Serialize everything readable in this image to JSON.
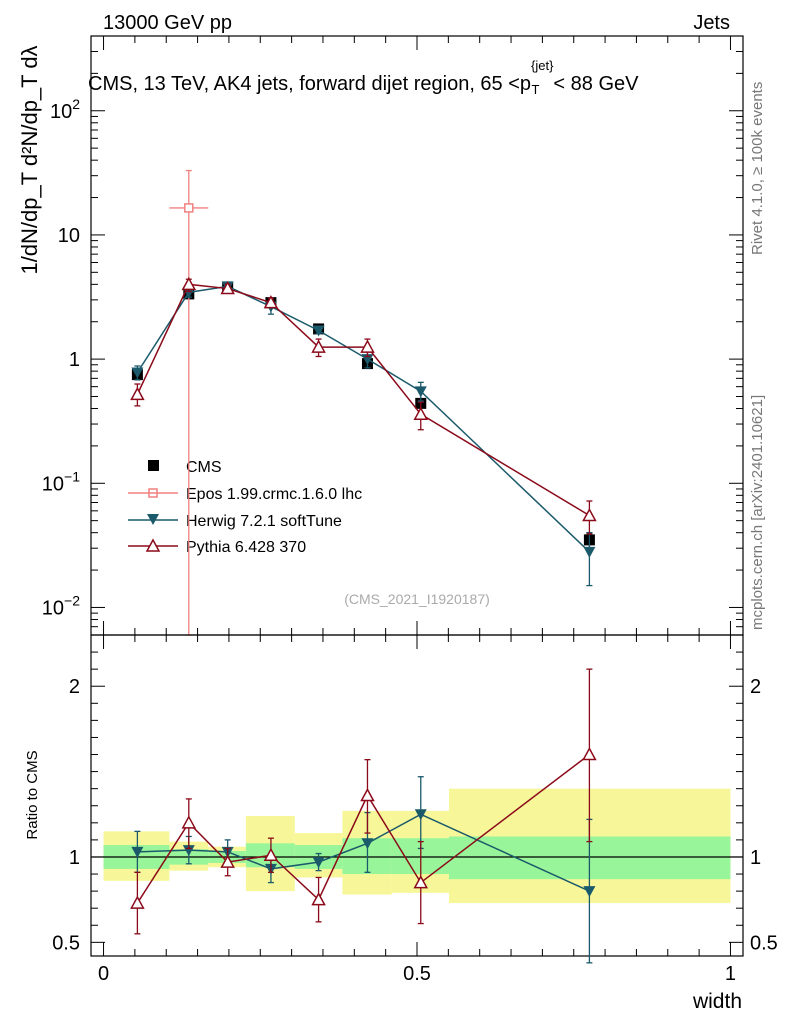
{
  "header": {
    "left": "13000 GeV pp",
    "right": "Jets"
  },
  "title": {
    "main": "CMS, 13 TeV, AK4 jets, forward dijet region, 65 <p",
    "sup": "{jet}",
    "sub": "T",
    "end": "< 88 GeV"
  },
  "side_labels": {
    "rivet": "Rivet 4.1.0, ≥ 100k events",
    "mcplots": "mcplots.cern.ch [arXiv:2401.10621]"
  },
  "analysis_id": "(CMS_2021_I1920187)",
  "colors": {
    "cms": "#000000",
    "epos": "#f08080",
    "herwig": "#1b5a6b",
    "pythia": "#8b0a1a",
    "band_inner": "#99f599",
    "band_outer": "#f7f799"
  },
  "chart_data": [
    {
      "type": "line",
      "scale": "log",
      "title": "CMS, 13 TeV, AK4 jets, forward dijet region, 65 <p_T^{jet}< 88 GeV",
      "ylabel": "1/dN/dp_T d²N/dp_T dλ",
      "ylim": [
        0.006,
        400
      ],
      "y_ticks": [
        {
          "value": 0.01,
          "base": "10",
          "exp": "−2"
        },
        {
          "value": 0.1,
          "base": "10",
          "exp": "−1"
        },
        {
          "value": 1,
          "base": "1",
          "exp": ""
        },
        {
          "value": 10,
          "base": "10",
          "exp": ""
        },
        {
          "value": 100,
          "base": "10",
          "exp": "2"
        }
      ],
      "x_bins": [
        [
          0.0,
          0.105
        ],
        [
          0.105,
          0.167
        ],
        [
          0.167,
          0.227
        ],
        [
          0.227,
          0.305
        ],
        [
          0.305,
          0.381
        ],
        [
          0.381,
          0.46
        ],
        [
          0.46,
          0.551
        ],
        [
          0.551,
          1.0
        ]
      ],
      "series": [
        {
          "key": "cms",
          "name": "CMS",
          "marker": "square",
          "x": [
            0.054,
            0.136,
            0.198,
            0.267,
            0.343,
            0.421,
            0.506,
            0.775
          ],
          "y": [
            0.75,
            3.35,
            3.8,
            2.85,
            1.75,
            0.92,
            0.44,
            0.035
          ],
          "yerr": [
            0.05,
            0.15,
            0.1,
            0.1,
            0.05,
            0.05,
            0.03,
            0.005
          ]
        },
        {
          "key": "epos",
          "name": "Epos 1.99.crmc.1.6.0 lhc",
          "marker": "open-cross",
          "x": [
            0.136
          ],
          "y": [
            16.5
          ],
          "ylo": [
            0.0001
          ],
          "yhi": [
            33
          ],
          "xerr": [
            0.031
          ]
        },
        {
          "key": "herwig",
          "name": "Herwig 7.2.1 softTune",
          "marker": "down-triangle",
          "x": [
            0.054,
            0.136,
            0.198,
            0.267,
            0.343,
            0.421,
            0.506,
            0.775
          ],
          "y": [
            0.78,
            3.45,
            3.85,
            2.65,
            1.7,
            1.0,
            0.55,
            0.028
          ],
          "ylo": [
            0.68,
            3.15,
            3.6,
            2.3,
            1.6,
            0.85,
            0.46,
            0.015
          ],
          "yhi": [
            0.88,
            3.7,
            4.1,
            2.95,
            1.8,
            1.15,
            0.65,
            0.04
          ]
        },
        {
          "key": "pythia",
          "name": "Pythia 6.428 370",
          "marker": "up-triangle",
          "x": [
            0.054,
            0.136,
            0.198,
            0.267,
            0.343,
            0.421,
            0.506,
            0.775
          ],
          "y": [
            0.52,
            4.0,
            3.7,
            2.85,
            1.25,
            1.25,
            0.36,
            0.055
          ],
          "ylo": [
            0.42,
            3.5,
            3.4,
            2.6,
            1.05,
            1.05,
            0.27,
            0.039
          ],
          "yhi": [
            0.63,
            4.4,
            4.0,
            3.1,
            1.45,
            1.45,
            0.45,
            0.072
          ]
        }
      ]
    },
    {
      "type": "line",
      "ylabel": "Ratio to CMS",
      "xlabel": "width",
      "xlim": [
        -0.02,
        1.02
      ],
      "ylim": [
        0.42,
        2.3
      ],
      "x_ticks": [
        {
          "value": 0,
          "label": "0"
        },
        {
          "value": 0.5,
          "label": "0.5"
        },
        {
          "value": 1,
          "label": "1"
        }
      ],
      "y_ticks": [
        {
          "value": 0.5,
          "label": "0.5"
        },
        {
          "value": 1,
          "label": "1"
        },
        {
          "value": 2,
          "label": "2"
        }
      ],
      "bands": [
        {
          "x0": 0.0,
          "x1": 0.105,
          "inner": [
            0.93,
            1.07
          ],
          "outer": [
            0.86,
            1.15
          ]
        },
        {
          "x0": 0.105,
          "x1": 0.167,
          "inner": [
            0.955,
            1.045
          ],
          "outer": [
            0.92,
            1.09
          ]
        },
        {
          "x0": 0.167,
          "x1": 0.227,
          "inner": [
            0.965,
            1.035
          ],
          "outer": [
            0.94,
            1.06
          ]
        },
        {
          "x0": 0.227,
          "x1": 0.305,
          "inner": [
            0.94,
            1.08
          ],
          "outer": [
            0.8,
            1.24
          ]
        },
        {
          "x0": 0.305,
          "x1": 0.381,
          "inner": [
            0.93,
            1.07
          ],
          "outer": [
            0.88,
            1.14
          ]
        },
        {
          "x0": 0.381,
          "x1": 0.46,
          "inner": [
            0.9,
            1.11
          ],
          "outer": [
            0.78,
            1.27
          ]
        },
        {
          "x0": 0.46,
          "x1": 0.551,
          "inner": [
            0.9,
            1.11
          ],
          "outer": [
            0.79,
            1.27
          ]
        },
        {
          "x0": 0.551,
          "x1": 1.0,
          "inner": [
            0.87,
            1.12
          ],
          "outer": [
            0.73,
            1.4
          ]
        }
      ],
      "series": [
        {
          "key": "herwig",
          "name": "Herwig 7.2.1 softTune",
          "marker": "down-triangle",
          "x": [
            0.054,
            0.136,
            0.198,
            0.267,
            0.343,
            0.421,
            0.506,
            0.775
          ],
          "y": [
            1.03,
            1.04,
            1.03,
            0.93,
            0.97,
            1.08,
            1.25,
            0.8
          ],
          "ylo": [
            0.91,
            0.96,
            0.97,
            0.85,
            0.92,
            0.91,
            1.05,
            0.38
          ],
          "yhi": [
            1.15,
            1.12,
            1.1,
            1.01,
            1.02,
            1.26,
            1.47,
            1.22
          ]
        },
        {
          "key": "pythia",
          "name": "Pythia 6.428 370",
          "marker": "up-triangle",
          "x": [
            0.054,
            0.136,
            0.198,
            0.267,
            0.343,
            0.421,
            0.506,
            0.775
          ],
          "y": [
            0.73,
            1.2,
            0.97,
            1.01,
            0.75,
            1.36,
            0.85,
            1.6
          ],
          "ylo": [
            0.55,
            1.05,
            0.89,
            0.91,
            0.62,
            1.14,
            0.61,
            1.09
          ],
          "yhi": [
            0.91,
            1.34,
            1.05,
            1.11,
            0.88,
            1.57,
            1.09,
            2.1
          ]
        }
      ]
    }
  ]
}
